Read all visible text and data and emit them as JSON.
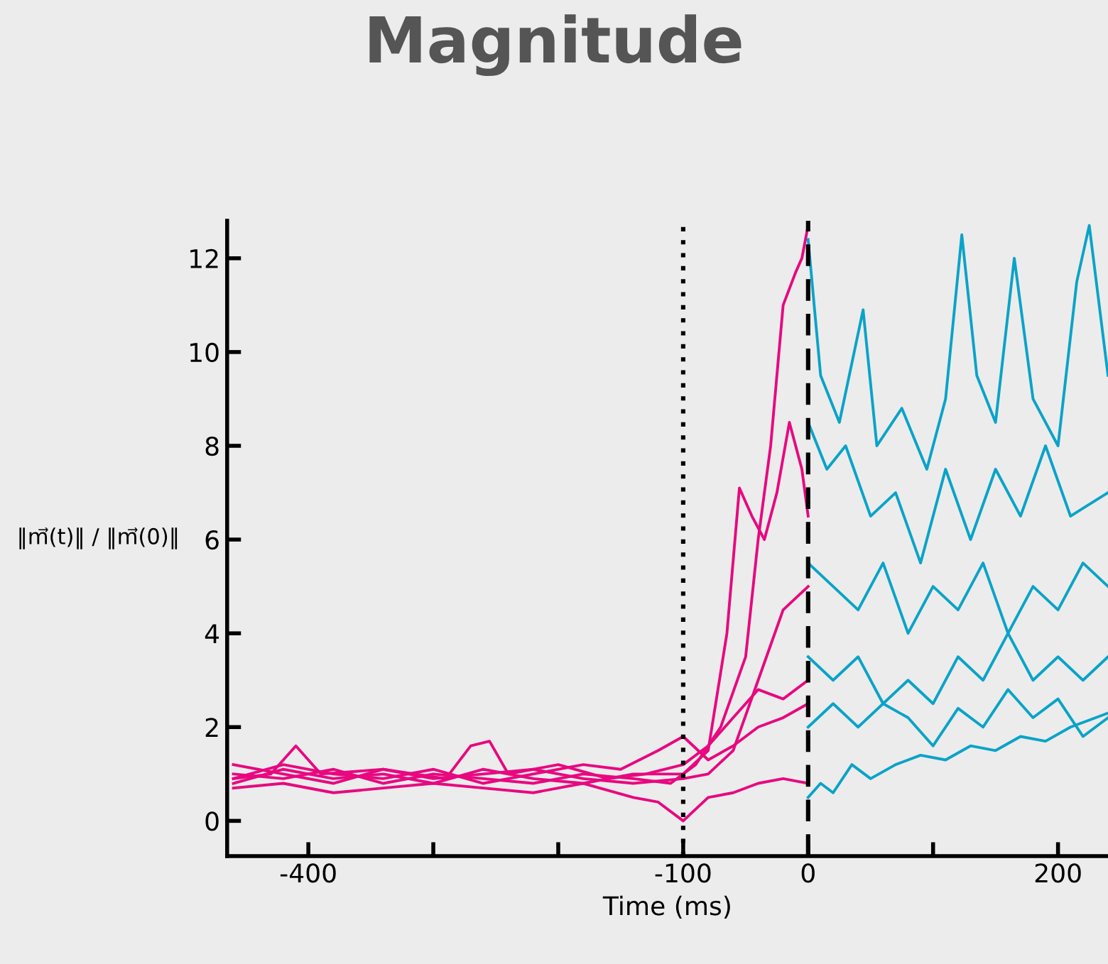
{
  "chart_data": {
    "type": "line",
    "title": "Magnitude",
    "xlabel": "Time (ms)",
    "ylabel": "‖m⃗(t)‖ / ‖m⃗(0)‖",
    "xlim": [
      -465,
      240
    ],
    "ylim": [
      -0.75,
      12.8
    ],
    "xticks": [
      -400,
      {
        "value": -300,
        "label": null
      },
      {
        "value": -200,
        "label": null
      },
      -100,
      0,
      {
        "value": 100,
        "label": null
      },
      200
    ],
    "yticks": [
      0,
      2,
      4,
      6,
      8,
      10,
      12
    ],
    "grid": false,
    "legend": false,
    "line_style": "solid",
    "marker": "none",
    "ref_lines": [
      {
        "axis": "x",
        "value": -100,
        "line_style": "dotted",
        "color": "#000000"
      },
      {
        "axis": "x",
        "value": 0,
        "line_style": "dashed",
        "color": "#000000"
      }
    ],
    "series": [
      {
        "color": "#e8087f",
        "x": [
          -460,
          -420,
          -380,
          -340,
          -300,
          -260,
          -220,
          -180,
          -140,
          -110,
          -90,
          -70,
          -50,
          -40,
          -30,
          -20,
          -10,
          -5,
          0
        ],
        "values": [
          1.0,
          0.9,
          1.1,
          0.8,
          1.0,
          0.9,
          0.8,
          1.0,
          0.9,
          0.8,
          1.2,
          2.0,
          3.5,
          6.0,
          8.0,
          11.0,
          11.7,
          12.0,
          12.7
        ]
      },
      {
        "color": "#e8087f",
        "x": [
          -460,
          -420,
          -380,
          -340,
          -300,
          -260,
          -220,
          -180,
          -140,
          -100,
          -80,
          -65,
          -55,
          -45,
          -35,
          -25,
          -15,
          -5,
          0
        ],
        "values": [
          0.8,
          1.1,
          0.9,
          1.0,
          0.8,
          1.1,
          0.9,
          0.8,
          1.0,
          1.0,
          1.5,
          4.0,
          7.1,
          6.5,
          6.0,
          7.0,
          8.5,
          7.5,
          6.5
        ]
      },
      {
        "color": "#e8087f",
        "x": [
          -460,
          -420,
          -380,
          -340,
          -300,
          -260,
          -220,
          -180,
          -140,
          -100,
          -80,
          -60,
          -40,
          -20,
          0
        ],
        "values": [
          1.2,
          1.0,
          0.8,
          1.1,
          0.9,
          1.0,
          1.1,
          0.9,
          0.8,
          0.9,
          1.0,
          1.5,
          3.0,
          4.5,
          5.0
        ]
      },
      {
        "color": "#e8087f",
        "x": [
          -460,
          -420,
          -380,
          -340,
          -300,
          -260,
          -220,
          -180,
          -150,
          -120,
          -100,
          -80,
          -60,
          -40,
          -20,
          0
        ],
        "values": [
          0.9,
          1.2,
          1.0,
          0.9,
          1.1,
          0.8,
          1.0,
          1.2,
          1.1,
          1.5,
          1.8,
          1.3,
          1.6,
          2.0,
          2.2,
          2.5
        ]
      },
      {
        "color": "#e8087f",
        "x": [
          -460,
          -420,
          -380,
          -340,
          -300,
          -260,
          -220,
          -180,
          -140,
          -120,
          -100,
          -80,
          -60,
          -40,
          -20,
          0
        ],
        "values": [
          0.7,
          0.8,
          0.6,
          0.7,
          0.8,
          0.7,
          0.6,
          0.8,
          0.5,
          0.4,
          0.0,
          0.5,
          0.6,
          0.8,
          0.9,
          0.8
        ]
      },
      {
        "color": "#e8087f",
        "x": [
          -460,
          -430,
          -410,
          -390,
          -340,
          -290,
          -270,
          -255,
          -240,
          -200,
          -160,
          -130,
          -100,
          -80,
          -60,
          -40,
          -20,
          0
        ],
        "values": [
          0.9,
          1.0,
          1.6,
          1.0,
          1.1,
          0.9,
          1.6,
          1.7,
          1.0,
          1.2,
          0.9,
          1.0,
          1.2,
          1.6,
          2.2,
          2.8,
          2.6,
          3.0
        ]
      },
      {
        "color": "#0aa3c8",
        "x": [
          0,
          10,
          25,
          44,
          55,
          75,
          95,
          110,
          123,
          135,
          150,
          165,
          180,
          200,
          215,
          225,
          240
        ],
        "values": [
          12.4,
          9.5,
          8.5,
          10.9,
          8.0,
          8.8,
          7.5,
          9.0,
          12.5,
          9.5,
          8.5,
          12.0,
          9.0,
          8.0,
          11.5,
          12.7,
          9.5
        ]
      },
      {
        "color": "#0aa3c8",
        "x": [
          0,
          15,
          30,
          50,
          70,
          90,
          110,
          130,
          150,
          170,
          190,
          210,
          240
        ],
        "values": [
          8.5,
          7.5,
          8.0,
          6.5,
          7.0,
          5.5,
          7.5,
          6.0,
          7.5,
          6.5,
          8.0,
          6.5,
          7.0
        ]
      },
      {
        "color": "#0aa3c8",
        "x": [
          0,
          20,
          40,
          60,
          80,
          100,
          120,
          140,
          160,
          180,
          200,
          220,
          240
        ],
        "values": [
          5.5,
          5.0,
          4.5,
          5.5,
          4.0,
          5.0,
          4.5,
          5.5,
          4.0,
          5.0,
          4.5,
          5.5,
          5.0
        ]
      },
      {
        "color": "#0aa3c8",
        "x": [
          0,
          20,
          40,
          60,
          80,
          100,
          120,
          140,
          160,
          180,
          200,
          220,
          240
        ],
        "values": [
          3.5,
          3.0,
          3.5,
          2.5,
          3.0,
          2.5,
          3.5,
          3.0,
          4.0,
          3.0,
          3.5,
          3.0,
          3.5
        ]
      },
      {
        "color": "#0aa3c8",
        "x": [
          0,
          20,
          40,
          60,
          80,
          100,
          120,
          140,
          160,
          180,
          200,
          220,
          240
        ],
        "values": [
          2.0,
          2.5,
          2.0,
          2.5,
          2.2,
          1.6,
          2.4,
          2.0,
          2.8,
          2.2,
          2.6,
          1.8,
          2.2
        ]
      },
      {
        "color": "#0aa3c8",
        "x": [
          0,
          10,
          20,
          35,
          50,
          70,
          90,
          110,
          130,
          150,
          170,
          190,
          210,
          240
        ],
        "values": [
          0.5,
          0.8,
          0.6,
          1.2,
          0.9,
          1.2,
          1.4,
          1.3,
          1.6,
          1.5,
          1.8,
          1.7,
          2.0,
          2.3
        ]
      }
    ]
  }
}
